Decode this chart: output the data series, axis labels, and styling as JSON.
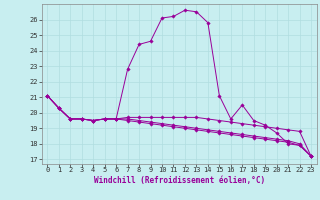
{
  "xlabel": "Windchill (Refroidissement éolien,°C)",
  "background_color": "#c8eef0",
  "line_color": "#990099",
  "grid_color": "#b0dde0",
  "x_ticks": [
    0,
    1,
    2,
    3,
    4,
    5,
    6,
    7,
    8,
    9,
    10,
    11,
    12,
    13,
    14,
    15,
    16,
    17,
    18,
    19,
    20,
    21,
    22,
    23
  ],
  "y_ticks": [
    17,
    18,
    19,
    20,
    21,
    22,
    23,
    24,
    25,
    26
  ],
  "ylim": [
    16.7,
    27.0
  ],
  "xlim": [
    -0.5,
    23.5
  ],
  "series": [
    [
      21.1,
      20.3,
      19.6,
      19.6,
      19.5,
      19.6,
      19.6,
      22.8,
      24.4,
      24.6,
      26.1,
      26.2,
      26.6,
      26.5,
      25.8,
      21.1,
      19.6,
      20.5,
      19.5,
      19.2,
      18.7,
      18.0,
      17.9,
      17.2
    ],
    [
      21.1,
      20.3,
      19.6,
      19.6,
      19.5,
      19.6,
      19.6,
      19.7,
      19.7,
      19.7,
      19.7,
      19.7,
      19.7,
      19.7,
      19.6,
      19.5,
      19.4,
      19.3,
      19.2,
      19.1,
      19.0,
      18.9,
      18.8,
      17.2
    ],
    [
      21.1,
      20.3,
      19.6,
      19.6,
      19.5,
      19.6,
      19.6,
      19.6,
      19.5,
      19.4,
      19.3,
      19.2,
      19.1,
      19.0,
      18.9,
      18.8,
      18.7,
      18.6,
      18.5,
      18.4,
      18.3,
      18.2,
      18.0,
      17.2
    ],
    [
      21.1,
      20.3,
      19.6,
      19.6,
      19.5,
      19.6,
      19.6,
      19.5,
      19.4,
      19.3,
      19.2,
      19.1,
      19.0,
      18.9,
      18.8,
      18.7,
      18.6,
      18.5,
      18.4,
      18.3,
      18.2,
      18.1,
      17.9,
      17.2
    ]
  ],
  "tick_fontsize": 5.0,
  "xlabel_fontsize": 5.5
}
